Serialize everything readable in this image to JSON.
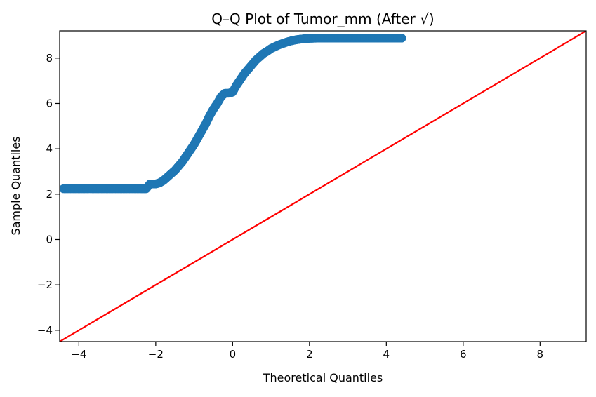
{
  "chart_data": {
    "type": "scatter",
    "title": "Q–Q Plot of Tumor_mm (After √)",
    "xlabel": "Theoretical Quantiles",
    "ylabel": "Sample Quantiles",
    "xlim": [
      -4.5,
      9.2
    ],
    "ylim": [
      -4.5,
      9.2
    ],
    "x_ticks": [
      -4,
      -2,
      0,
      2,
      4,
      6,
      8
    ],
    "y_ticks": [
      -4,
      -2,
      0,
      2,
      4,
      6,
      8
    ],
    "x_tick_labels": [
      "−4",
      "−2",
      "0",
      "2",
      "4",
      "6",
      "8"
    ],
    "y_tick_labels": [
      "−4",
      "−2",
      "0",
      "2",
      "4",
      "6",
      "8"
    ],
    "grid": false,
    "series": [
      {
        "kind": "points",
        "color": "#1f77b4",
        "x": [
          -4.4,
          -4.2,
          -4.0,
          -3.8,
          -3.6,
          -3.4,
          -3.2,
          -3.0,
          -2.8,
          -2.6,
          -2.4,
          -2.25,
          -2.15,
          -2.0,
          -1.9,
          -1.8,
          -1.7,
          -1.6,
          -1.5,
          -1.4,
          -1.3,
          -1.2,
          -1.1,
          -1.0,
          -0.9,
          -0.8,
          -0.7,
          -0.6,
          -0.5,
          -0.4,
          -0.3,
          -0.2,
          -0.1,
          0.0,
          0.1,
          0.2,
          0.3,
          0.4,
          0.5,
          0.6,
          0.7,
          0.8,
          0.9,
          1.0,
          1.1,
          1.2,
          1.3,
          1.4,
          1.5,
          1.6,
          1.7,
          1.8,
          1.9,
          2.0,
          2.2,
          2.4,
          2.6,
          2.8,
          3.0,
          3.2,
          3.4,
          3.6,
          3.8,
          4.0,
          4.2,
          4.4
        ],
        "y": [
          2.24,
          2.24,
          2.24,
          2.24,
          2.24,
          2.24,
          2.24,
          2.24,
          2.24,
          2.24,
          2.24,
          2.24,
          2.45,
          2.45,
          2.5,
          2.6,
          2.75,
          2.9,
          3.05,
          3.25,
          3.45,
          3.7,
          3.95,
          4.2,
          4.5,
          4.8,
          5.1,
          5.45,
          5.75,
          6.0,
          6.3,
          6.45,
          6.45,
          6.5,
          6.8,
          7.05,
          7.3,
          7.5,
          7.7,
          7.9,
          8.05,
          8.2,
          8.3,
          8.42,
          8.5,
          8.58,
          8.64,
          8.7,
          8.75,
          8.79,
          8.82,
          8.84,
          8.86,
          8.87,
          8.88,
          8.88,
          8.88,
          8.88,
          8.88,
          8.88,
          8.88,
          8.88,
          8.88,
          8.88,
          8.88,
          8.88
        ]
      },
      {
        "kind": "reference-line",
        "color": "#ff0000",
        "x": [
          -4.5,
          9.2
        ],
        "y": [
          -4.5,
          9.2
        ]
      }
    ]
  }
}
